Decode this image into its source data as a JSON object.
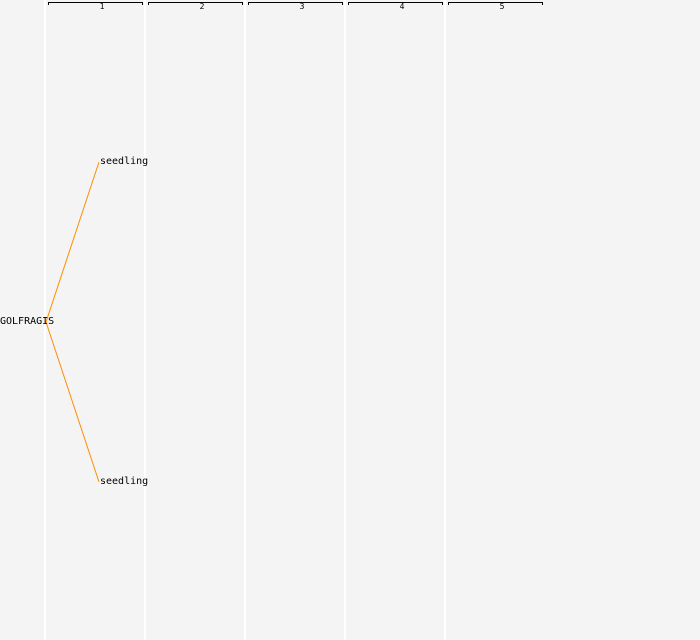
{
  "columns": [
    "1",
    "2",
    "3",
    "4",
    "5"
  ],
  "root": {
    "label": "GOLFRAGIS"
  },
  "children": [
    {
      "label": "seedling"
    },
    {
      "label": "seedling"
    }
  ],
  "colors": {
    "edge": "#ff8c00",
    "background": "#f4f4f4",
    "separator": "#ffffff"
  }
}
